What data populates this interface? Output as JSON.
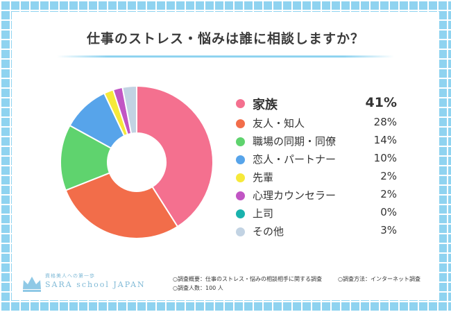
{
  "title": "仕事のストレス・悩みは誰に相談しますか？",
  "logo": {
    "tagline": "資格美人への第一歩",
    "brand": "SARA school JAPAN"
  },
  "footnotes": {
    "survey": "○調査概要：仕事のストレス・悩みの相談相手に関する調査",
    "method": "○調査方法：インターネット調査",
    "count": "○調査人数：100 人"
  },
  "chart_data": {
    "type": "pie",
    "title": "仕事のストレス・悩みは誰に相談しますか？",
    "donut": true,
    "legend_position": "right",
    "categories": [
      "家族",
      "友人・知人",
      "職場の同期・同僚",
      "恋人・パートナー",
      "先輩",
      "心理カウンセラー",
      "上司",
      "その他"
    ],
    "values": [
      41,
      28,
      14,
      10,
      2,
      2,
      0,
      3
    ],
    "labels": [
      "41%",
      "28%",
      "14%",
      "10%",
      "2%",
      "2%",
      "0%",
      "3%"
    ],
    "colors": [
      "#f4708f",
      "#f26d4a",
      "#5fd36e",
      "#57a4ea",
      "#f6e93a",
      "#c155c4",
      "#1ab2ad",
      "#c2d3e3"
    ],
    "unit": "%"
  }
}
